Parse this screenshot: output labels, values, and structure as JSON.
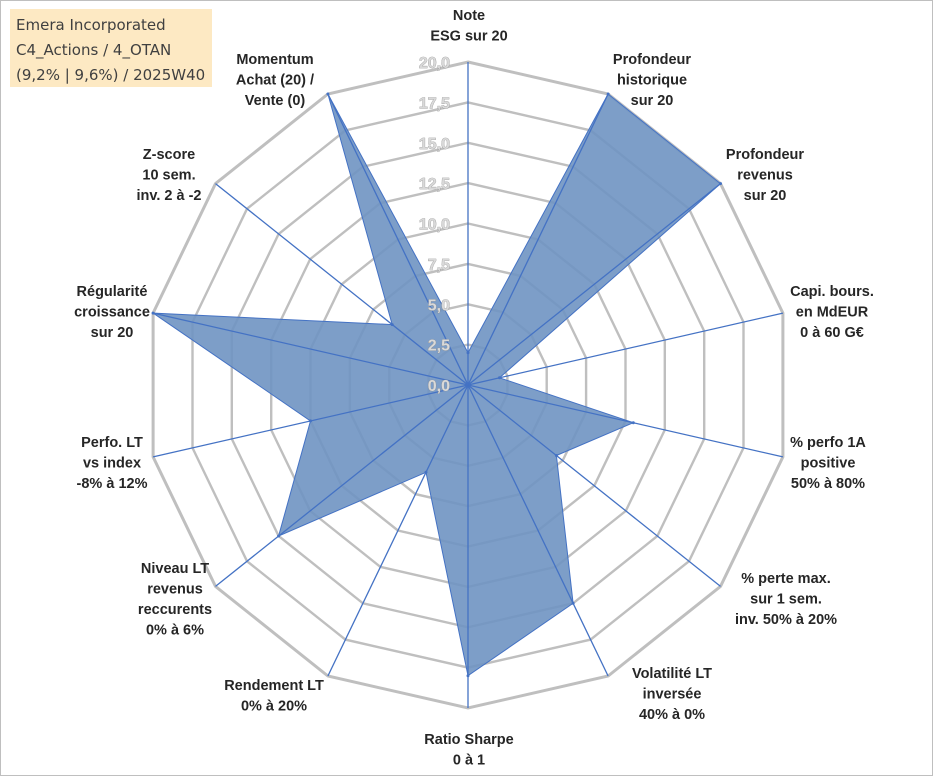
{
  "title": {
    "lines": [
      "Emera Incorporated",
      "C4_Actions / 4_OTAN",
      "(9,2% | 9,6%) / 2025W40"
    ]
  },
  "chart_data": {
    "type": "radar",
    "rlim": [
      0,
      20
    ],
    "ticks": [
      "0,0",
      "2,5",
      "5,0",
      "7,5",
      "10,0",
      "12,5",
      "15,0",
      "17,5",
      "20,0"
    ],
    "tick_values": [
      0,
      2.5,
      5,
      7.5,
      10,
      12.5,
      15,
      17.5,
      20
    ],
    "grid": true,
    "fill_color": "#6f94c2",
    "line_color": "#4472c4",
    "grid_color": "#bfbfbf",
    "axes": [
      {
        "label": [
          "Note",
          "ESG sur 20"
        ],
        "value": 2.0
      },
      {
        "label": [
          "Profondeur",
          "historique",
          "sur 20"
        ],
        "value": 20.0
      },
      {
        "label": [
          "Profondeur",
          "revenus",
          "sur 20"
        ],
        "value": 20.0
      },
      {
        "label": [
          "Capi. bours.",
          "en MdEUR",
          "0 à 60 G€"
        ],
        "value": 2.0
      },
      {
        "label": [
          "% perfo 1A",
          "positive",
          "50% à 80%"
        ],
        "value": 10.5
      },
      {
        "label": [
          "% perte max.",
          "sur 1 sem.",
          "inv. 50% à 20%"
        ],
        "value": 7.0
      },
      {
        "label": [
          "Volatilité LT",
          "inversée",
          "40% à 0%"
        ],
        "value": 15.0
      },
      {
        "label": [
          "Ratio Sharpe",
          "0 à 1"
        ],
        "value": 18.0
      },
      {
        "label": [
          "Rendement LT",
          "0% à 20%"
        ],
        "value": 6.0
      },
      {
        "label": [
          "Niveau LT",
          "revenus",
          "reccurents",
          "0% à 6%"
        ],
        "value": 15.0
      },
      {
        "label": [
          "Perfo. LT",
          "vs index",
          "-8% à 12%"
        ],
        "value": 10.0
      },
      {
        "label": [
          "Régularité",
          "croissance",
          "sur 20"
        ],
        "value": 20.0
      },
      {
        "label": [
          "Z-score",
          "10 sem.",
          "inv. 2 à -2"
        ],
        "value": 6.0
      },
      {
        "label": [
          "Momentum",
          "Achat (20) /",
          "Vente (0)"
        ],
        "value": 20.0
      }
    ]
  }
}
